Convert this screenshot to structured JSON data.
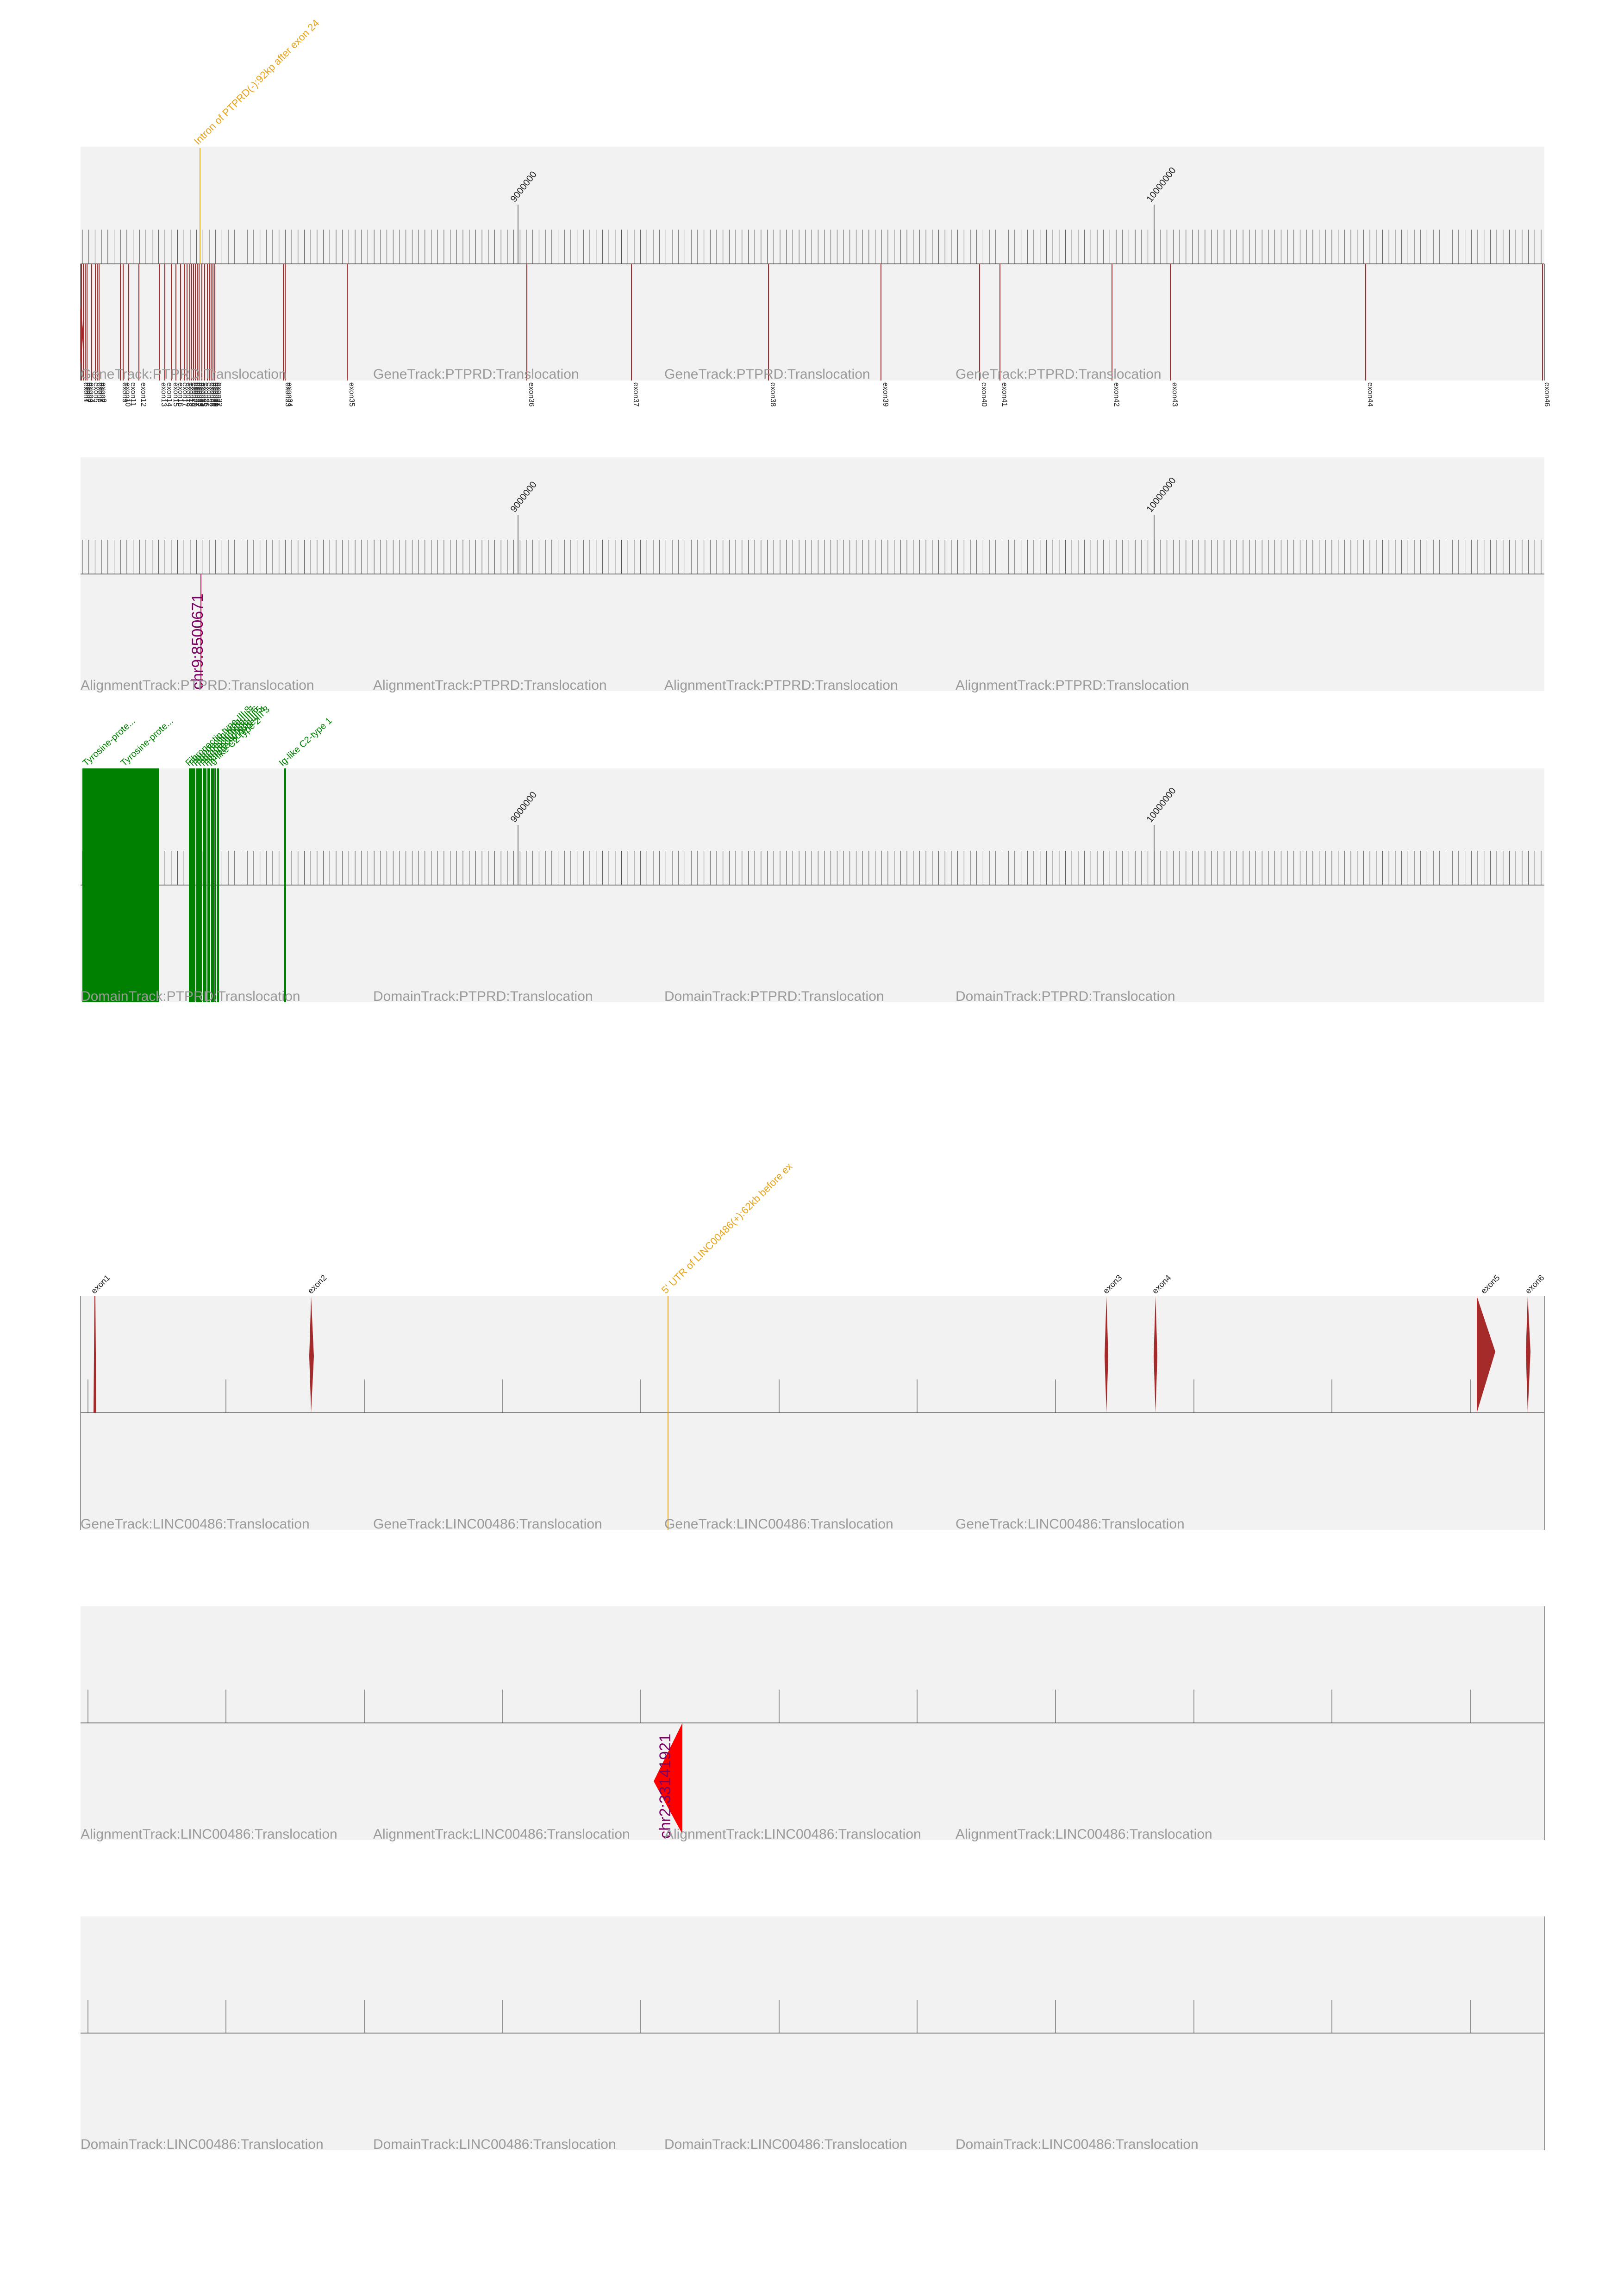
{
  "colors": {
    "track_bg": "#f2f2f2",
    "exon": "#a52a2a",
    "breakpoint": "#e8a317",
    "domain": "#008000",
    "read": "#ff0000",
    "read_label": "#7b0063",
    "track_label": "#9a9a9a",
    "tick": "#555555"
  },
  "ptprd": {
    "tick_labels": [
      "9000000",
      "10000000"
    ],
    "breakpoint_label": "Intron of PTPRD(-):92kp after exon 24",
    "read_label": "chr9:8500671",
    "gene_track_labels": [
      "GeneTrack:PTPRD:Translocation",
      "GeneTrack:PTPRD:Translocation",
      "GeneTrack:PTPRD:Translocation",
      "GeneTrack:PTPRD:Translocation"
    ],
    "alignment_track_labels": [
      "AlignmentTrack:PTPRD:Translocation",
      "AlignmentTrack:PTPRD:Translocation",
      "AlignmentTrack:PTPRD:Translocation",
      "AlignmentTrack:PTPRD:Translocation"
    ],
    "domain_track_labels": [
      "DomainTrack:PTPRD:Translocation",
      "DomainTrack:PTPRD:Translocation",
      "DomainTrack:PTPRD:Translocation",
      "DomainTrack:PTPRD:Translocation"
    ],
    "exons_left_cluster": [
      "exon1",
      "exon2",
      "exon3",
      "exon4",
      "exon5",
      "exon6",
      "exon7",
      "exon8",
      "exon9",
      "exon10",
      "exon11",
      "exon12",
      "exon13",
      "exon14",
      "exon15",
      "exon16",
      "exon17",
      "exon18",
      "exon19",
      "exon20",
      "exon21",
      "exon22",
      "exon23",
      "exon24",
      "exon25",
      "exon26",
      "exon27",
      "exon28",
      "exon29",
      "exon30",
      "exon31",
      "exon32",
      "exon33",
      "exon34"
    ],
    "exons_right": [
      "exon35",
      "exon36",
      "exon37",
      "exon38",
      "exon39",
      "exon40",
      "exon41",
      "exon42",
      "exon43",
      "exon44",
      "exon46"
    ],
    "domain_labels": [
      "Tyrosine-prote...",
      "Tyrosine-prote...",
      "Fibronectin type-III 8",
      "Fibronectin type-III 7",
      "Fibronectin type-III 6",
      "Fibronectin type-III 5",
      "Fibronectin type-III 4",
      "Fibronectin type-III 3",
      "Ig-like C2-type 2",
      "Ig-like C2-type 1"
    ]
  },
  "linc": {
    "breakpoint_label": "5' UTR of LINC00486(+):62kb before ex",
    "read_label": "chr2:33141921",
    "exons": [
      "exon1",
      "exon2",
      "exon3",
      "exon4",
      "exon5",
      "exon6"
    ],
    "gene_track_labels": [
      "GeneTrack:LINC00486:Translocation",
      "GeneTrack:LINC00486:Translocation",
      "GeneTrack:LINC00486:Translocation",
      "GeneTrack:LINC00486:Translocation"
    ],
    "alignment_track_labels": [
      "AlignmentTrack:LINC00486:Translocation",
      "AlignmentTrack:LINC00486:Translocation",
      "AlignmentTrack:LINC00486:Translocation",
      "AlignmentTrack:LINC00486:Translocation"
    ],
    "domain_track_labels": [
      "DomainTrack:LINC00486:Translocation",
      "DomainTrack:LINC00486:Translocation",
      "DomainTrack:LINC00486:Translocation",
      "DomainTrack:LINC00486:Translocation"
    ]
  }
}
